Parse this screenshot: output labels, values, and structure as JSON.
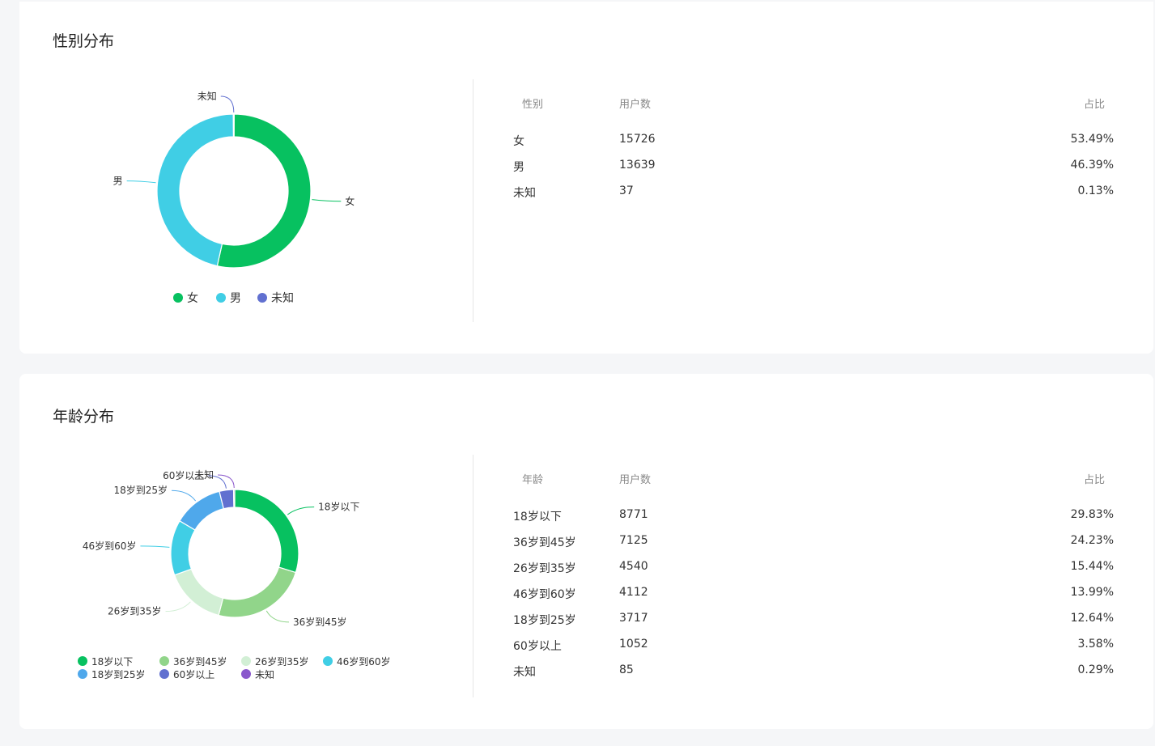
{
  "gender": {
    "title": "性别分布",
    "table": {
      "headers": {
        "name": "性别",
        "count": "用户数",
        "pct": "占比"
      },
      "rows": [
        {
          "name": "女",
          "count": "15726",
          "pct": "53.49%"
        },
        {
          "name": "男",
          "count": "13639",
          "pct": "46.39%"
        },
        {
          "name": "未知",
          "count": "37",
          "pct": "0.13%"
        }
      ]
    }
  },
  "age": {
    "title": "年龄分布",
    "table": {
      "headers": {
        "name": "年龄",
        "count": "用户数",
        "pct": "占比"
      },
      "rows": [
        {
          "name": "18岁以下",
          "count": "8771",
          "pct": "29.83%"
        },
        {
          "name": "36岁到45岁",
          "count": "7125",
          "pct": "24.23%"
        },
        {
          "name": "26岁到35岁",
          "count": "4540",
          "pct": "15.44%"
        },
        {
          "name": "46岁到60岁",
          "count": "4112",
          "pct": "13.99%"
        },
        {
          "name": "18岁到25岁",
          "count": "3717",
          "pct": "12.64%"
        },
        {
          "name": "60岁以上",
          "count": "1052",
          "pct": "3.58%"
        },
        {
          "name": "未知",
          "count": "85",
          "pct": "0.29%"
        }
      ]
    }
  },
  "chart_data": [
    {
      "type": "pie",
      "donut": true,
      "title": "",
      "legend": "bottom",
      "categories": [
        "女",
        "男",
        "未知"
      ],
      "values": [
        15726,
        13639,
        37
      ],
      "colors": [
        "#07c160",
        "#40cee5",
        "#6170d0"
      ]
    },
    {
      "type": "pie",
      "donut": true,
      "title": "",
      "legend": "bottom",
      "categories": [
        "18岁以下",
        "36岁到45岁",
        "26岁到35岁",
        "46岁到60岁",
        "18岁到25岁",
        "60岁以上",
        "未知"
      ],
      "values": [
        8771,
        7125,
        4540,
        4112,
        3717,
        1052,
        85
      ],
      "colors": [
        "#07c160",
        "#91d58a",
        "#d2efd5",
        "#40cee5",
        "#4fa8eb",
        "#6170d0",
        "#8a58cc"
      ]
    }
  ]
}
